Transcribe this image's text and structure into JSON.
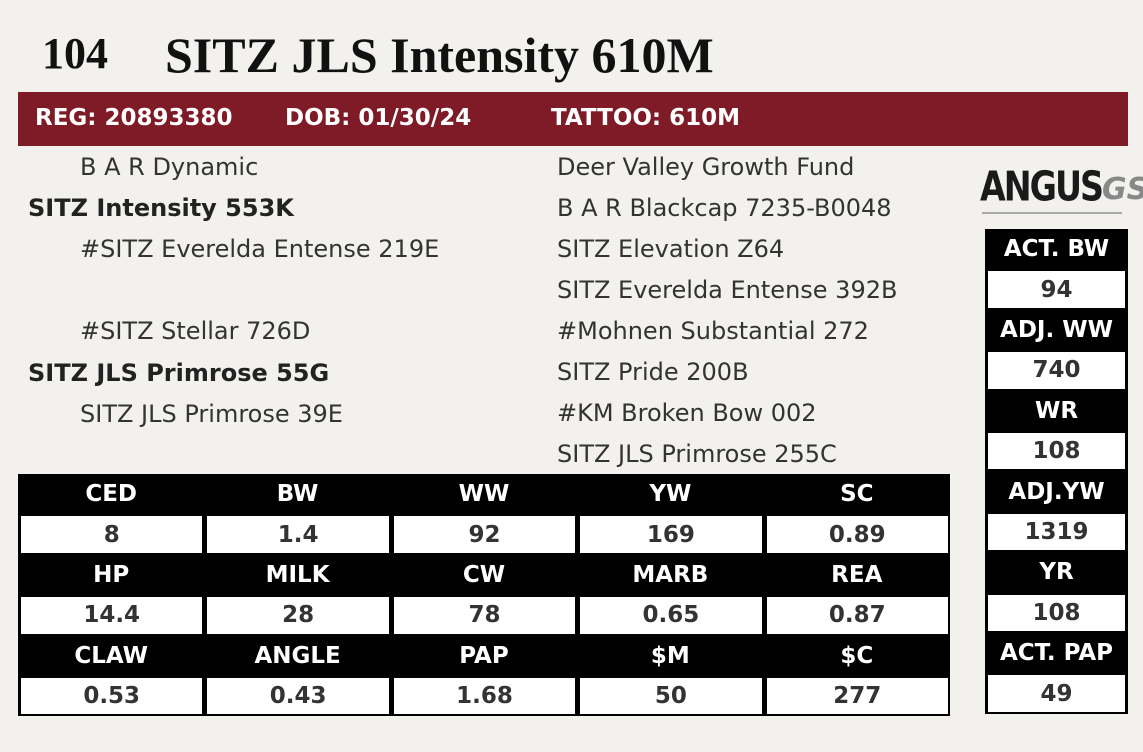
{
  "lot": "104",
  "name": "SITZ JLS Intensity 610M",
  "header": {
    "reg": "REG: 20893380",
    "dob": "DOB: 01/30/24",
    "tattoo": "TATTOO: 610M"
  },
  "pedigree": {
    "sire_sire": "B A R Dynamic",
    "sire": "SITZ Intensity 553K",
    "sire_dam": "#SITZ Everelda Entense 219E",
    "dam_sire": "#SITZ Stellar 726D",
    "dam": "SITZ JLS Primrose 55G",
    "dam_dam": "SITZ JLS Primrose 39E",
    "ancestors": [
      "Deer Valley Growth Fund",
      "B A R Blackcap 7235-B0048",
      "SITZ Elevation Z64",
      "SITZ Everelda Entense 392B",
      "#Mohnen Substantial 272",
      "SITZ Pride 200B",
      "#KM Broken Bow 002",
      "SITZ JLS Primrose 255C"
    ]
  },
  "logo": {
    "text": "ANGUS",
    "suffix": "GS"
  },
  "epd_table": {
    "rows": [
      [
        "CED",
        "BW",
        "WW",
        "YW",
        "SC"
      ],
      [
        8,
        1.4,
        92,
        169,
        0.89
      ],
      [
        "HP",
        "MILK",
        "CW",
        "MARB",
        "REA"
      ],
      [
        14.4,
        28,
        78,
        0.65,
        0.87
      ],
      [
        "CLAW",
        "ANGLE",
        "PAP",
        "$M",
        "$C"
      ],
      [
        0.53,
        0.43,
        1.68,
        50,
        277
      ]
    ]
  },
  "side_stats": [
    {
      "label": "ACT. BW",
      "value": 94
    },
    {
      "label": "ADJ. WW",
      "value": 740
    },
    {
      "label": "WR",
      "value": 108
    },
    {
      "label": "ADJ.YW",
      "value": 1319
    },
    {
      "label": "YR",
      "value": 108
    },
    {
      "label": "ACT. PAP",
      "value": 49
    }
  ]
}
